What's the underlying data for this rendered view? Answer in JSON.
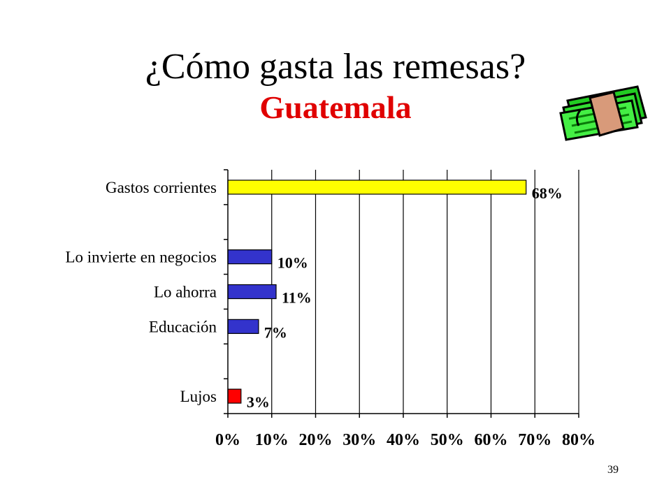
{
  "slide": {
    "title": "¿Cómo gasta las remesas?",
    "subtitle": "Guatemala",
    "subtitle_color": "#e00000",
    "page_number": "39",
    "icon": "money-stack-icon"
  },
  "chart_data": {
    "type": "bar",
    "orientation": "horizontal",
    "categories": [
      "Gastos corrientes",
      "Lo invierte en negocios",
      "Lo ahorra",
      "Educación",
      "Lujos"
    ],
    "values": [
      68,
      10,
      11,
      7,
      3
    ],
    "data_labels": [
      "68%",
      "10%",
      "11%",
      "7%",
      "3%"
    ],
    "colors": [
      "#ffff00",
      "#3333cc",
      "#3333cc",
      "#3333cc",
      "#ff0000"
    ],
    "xlim": [
      0,
      80
    ],
    "x_ticks": [
      "0%",
      "10%",
      "20%",
      "30%",
      "40%",
      "50%",
      "60%",
      "70%",
      "80%"
    ],
    "grid": true,
    "legend": "none"
  }
}
